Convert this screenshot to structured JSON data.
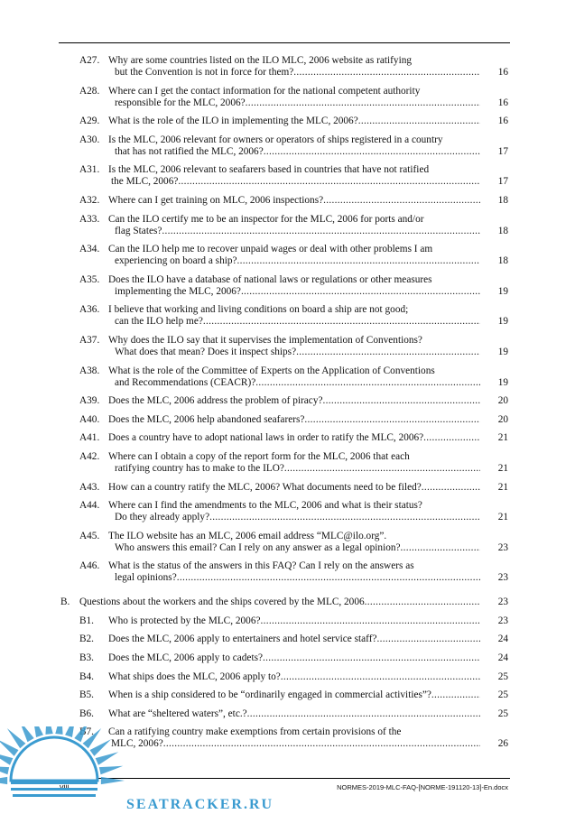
{
  "toc": [
    {
      "num": "A27.",
      "l1": "Why are some countries listed on the ILO MLC, 2006 website as ratifying",
      "l2": "but the Convention is not in force for them?",
      "page": "16"
    },
    {
      "num": "A28.",
      "l1": "Where can I get the contact information for the national competent authority",
      "l2": "responsible for the MLC, 2006?",
      "page": "16"
    },
    {
      "num": "A29.",
      "l1": "",
      "l2": "What is the role of the ILO in implementing the MLC, 2006?",
      "page": "16"
    },
    {
      "num": "A30.",
      "l1": "Is the MLC, 2006 relevant for owners or operators of ships registered in a country",
      "l2": "that has not ratified the MLC, 2006?",
      "page": "17"
    },
    {
      "num": "A31.",
      "l1": "Is the MLC, 2006 relevant to seafarers based in countries that have not ratified",
      "l2": "the MLC, 2006?",
      "page": "17"
    },
    {
      "num": "A32.",
      "l1": "",
      "l2": "Where can I get training on MLC, 2006 inspections?",
      "page": "18"
    },
    {
      "num": "A33.",
      "l1": "Can the ILO certify me to be an inspector for the MLC, 2006 for ports and/or",
      "l2": "flag States?",
      "page": "18"
    },
    {
      "num": "A34.",
      "l1": "Can the ILO help me to recover unpaid wages or deal with other problems I am",
      "l2": "experiencing on board a ship?",
      "page": "18"
    },
    {
      "num": "A35.",
      "l1": "Does the ILO have a database of national laws or regulations or other measures",
      "l2": "implementing the MLC, 2006?",
      "page": "19"
    },
    {
      "num": "A36.",
      "l1": "I believe that working and living conditions on board a ship are not good;",
      "l2": "can the ILO help me?",
      "page": "19"
    },
    {
      "num": "A37.",
      "l1": "Why does the ILO say that it supervises the implementation of Conventions?",
      "l2": "What does that mean? Does it inspect ships?",
      "page": "19"
    },
    {
      "num": "A38.",
      "l1": "What is the role of the Committee of Experts on the Application of Conventions",
      "l2": "and Recommendations (CEACR)?",
      "page": "19"
    },
    {
      "num": "A39.",
      "l1": "",
      "l2": "Does the MLC, 2006 address the problem of piracy?",
      "page": "20"
    },
    {
      "num": "A40.",
      "l1": "",
      "l2": "Does the MLC, 2006 help abandoned seafarers?",
      "page": "20"
    },
    {
      "num": "A41.",
      "l1": "",
      "l2": "Does a country have to adopt national laws in order to ratify the MLC, 2006?",
      "page": "21"
    },
    {
      "num": "A42.",
      "l1": "Where can I obtain a copy of the report form for the MLC, 2006 that each",
      "l2": "ratifying country has to make to the ILO?",
      "page": "21"
    },
    {
      "num": "A43.",
      "l1": "",
      "l2": "How can a country ratify the MLC, 2006? What documents need to be filed?",
      "page": "21"
    },
    {
      "num": "A44.",
      "l1": "Where can I find the amendments to the MLC, 2006 and what is their status?",
      "l2": "Do they already apply?",
      "page": "21"
    },
    {
      "num": "A45.",
      "l1": "The ILO website has an MLC, 2006 email address “MLC@ilo.org”.",
      "l2": "Who answers this email? Can I rely on any answer as a legal opinion?",
      "page": "23"
    },
    {
      "num": "A46.",
      "l1": "What is the status of the answers in this FAQ? Can I rely on the answers as",
      "l2": "legal opinions?",
      "page": "23"
    },
    {
      "num": "B.",
      "l1": "",
      "l2": "Questions about the workers and the ships covered by the MLC, 2006",
      "page": "23",
      "section": true
    },
    {
      "num": "B1.",
      "l1": "",
      "l2": "Who is protected by the MLC, 2006?",
      "page": "23"
    },
    {
      "num": "B2.",
      "l1": "",
      "l2": "Does the MLC, 2006 apply to entertainers and hotel service staff?",
      "page": "24"
    },
    {
      "num": "B3.",
      "l1": "",
      "l2": "Does the MLC, 2006 apply to cadets?",
      "page": "24"
    },
    {
      "num": "B4.",
      "l1": "",
      "l2": "What ships does the MLC, 2006 apply to?",
      "page": "25"
    },
    {
      "num": "B5.",
      "l1": "",
      "l2": "When is a ship considered to be “ordinarily engaged in commercial activities”?",
      "page": "25"
    },
    {
      "num": "B6.",
      "l1": "",
      "l2": "What are “sheltered waters”, etc.?",
      "page": "25"
    },
    {
      "num": "B7.",
      "l1": "Can a ratifying country make exemptions from certain provisions of the",
      "l2": "MLC, 2006?",
      "page": "26"
    }
  ],
  "footer": {
    "page_label": "viii",
    "doc_name": "NORMES-2019-MLC-FAQ-[NORME-191120-13]-En.docx"
  },
  "watermark": {
    "text": "SEATRACKER.RU",
    "color": "#3a9bd0"
  }
}
